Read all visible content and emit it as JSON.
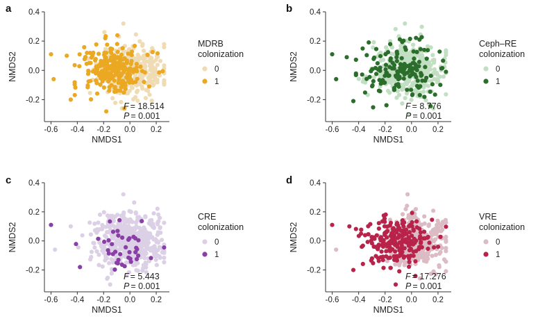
{
  "chart_data": [
    {
      "panel": "a",
      "type": "scatter",
      "xlabel": "NMDS1",
      "ylabel": "NMDS2",
      "xlim": [
        -0.65,
        0.3
      ],
      "ylim": [
        -0.35,
        0.4
      ],
      "xticks": [
        -0.6,
        -0.4,
        -0.2,
        0.0,
        0.2
      ],
      "yticks": [
        -0.2,
        0.0,
        0.2,
        0.4
      ],
      "legend": {
        "title_lines": [
          "MDRB",
          "colonization"
        ],
        "placement": "right",
        "entries": [
          {
            "label": "0",
            "color": "#efdcb4"
          },
          {
            "label": "1",
            "color": "#eaa823"
          }
        ]
      },
      "annotation": {
        "F_label": "F",
        "F_value": "= 18.514",
        "P_label": "P",
        "P_value": "= 0.001"
      },
      "series": [
        {
          "label": "0",
          "color": "#efdcb4",
          "center": [
            0.02,
            0.0
          ],
          "spread": [
            0.12,
            0.09
          ],
          "count": 330,
          "seed": 11
        },
        {
          "label": "1",
          "color": "#eaa823",
          "center": [
            -0.12,
            0.0
          ],
          "spread": [
            0.12,
            0.09
          ],
          "count": 230,
          "seed": 12
        }
      ],
      "outliers": [
        {
          "x": -0.6,
          "y": 0.11,
          "color": "#eaa823"
        },
        {
          "x": -0.58,
          "y": -0.06,
          "color": "#eaa823"
        },
        {
          "x": -0.45,
          "y": -0.2,
          "color": "#eaa823"
        },
        {
          "x": -0.48,
          "y": 0.1,
          "color": "#eaa823"
        },
        {
          "x": -0.18,
          "y": -0.28,
          "color": "#eaa823"
        },
        {
          "x": -0.05,
          "y": 0.32,
          "color": "#efdcb4"
        }
      ]
    },
    {
      "panel": "b",
      "type": "scatter",
      "xlabel": "NMDS1",
      "ylabel": "NMDS2",
      "xlim": [
        -0.65,
        0.3
      ],
      "ylim": [
        -0.35,
        0.4
      ],
      "xticks": [
        -0.6,
        -0.4,
        -0.2,
        0.0,
        0.2
      ],
      "yticks": [
        -0.2,
        0.0,
        0.2,
        0.4
      ],
      "legend": {
        "title_lines": [
          "Ceph–RE",
          "colonization"
        ],
        "placement": "right",
        "entries": [
          {
            "label": "0",
            "color": "#c3dfc3"
          },
          {
            "label": "1",
            "color": "#2b6e2b"
          }
        ]
      },
      "annotation": {
        "F_label": "F",
        "F_value": "= 8.776",
        "P_label": "P",
        "P_value": "= 0.001"
      },
      "series": [
        {
          "label": "0",
          "color": "#c3dfc3",
          "center": [
            -0.02,
            0.0
          ],
          "spread": [
            0.13,
            0.09
          ],
          "count": 420,
          "seed": 21
        },
        {
          "label": "1",
          "color": "#2b6e2b",
          "center": [
            -0.08,
            0.0
          ],
          "spread": [
            0.14,
            0.09
          ],
          "count": 150,
          "seed": 22
        }
      ],
      "outliers": [
        {
          "x": -0.6,
          "y": 0.11,
          "color": "#2b6e2b"
        },
        {
          "x": -0.57,
          "y": -0.06,
          "color": "#2b6e2b"
        },
        {
          "x": -0.44,
          "y": -0.21,
          "color": "#2b6e2b"
        },
        {
          "x": -0.49,
          "y": 0.09,
          "color": "#2b6e2b"
        },
        {
          "x": -0.02,
          "y": -0.3,
          "color": "#c3dfc3"
        },
        {
          "x": -0.05,
          "y": 0.32,
          "color": "#c3dfc3"
        }
      ]
    },
    {
      "panel": "c",
      "type": "scatter",
      "xlabel": "NMDS1",
      "ylabel": "NMDS2",
      "xlim": [
        -0.65,
        0.3
      ],
      "ylim": [
        -0.35,
        0.4
      ],
      "xticks": [
        -0.6,
        -0.4,
        -0.2,
        0.0,
        0.2
      ],
      "yticks": [
        -0.2,
        0.0,
        0.2,
        0.4
      ],
      "legend": {
        "title_lines": [
          "CRE",
          "colonization"
        ],
        "placement": "right",
        "entries": [
          {
            "label": "0",
            "color": "#dcd0e6"
          },
          {
            "label": "1",
            "color": "#8a3fa6"
          }
        ]
      },
      "annotation": {
        "F_label": "F",
        "F_value": "= 5.443",
        "P_label": "P",
        "P_value": "= 0.001"
      },
      "series": [
        {
          "label": "0",
          "color": "#dcd0e6",
          "center": [
            0.0,
            0.0
          ],
          "spread": [
            0.13,
            0.09
          ],
          "count": 520,
          "seed": 31
        },
        {
          "label": "1",
          "color": "#8a3fa6",
          "center": [
            -0.05,
            -0.02
          ],
          "spread": [
            0.13,
            0.08
          ],
          "count": 40,
          "seed": 32
        }
      ],
      "outliers": [
        {
          "x": -0.6,
          "y": 0.11,
          "color": "#8a3fa6"
        },
        {
          "x": -0.57,
          "y": -0.06,
          "color": "#dcd0e6"
        },
        {
          "x": -0.38,
          "y": -0.18,
          "color": "#8a3fa6"
        },
        {
          "x": -0.45,
          "y": 0.1,
          "color": "#dcd0e6"
        },
        {
          "x": -0.15,
          "y": -0.3,
          "color": "#dcd0e6"
        },
        {
          "x": -0.05,
          "y": 0.32,
          "color": "#dcd0e6"
        }
      ]
    },
    {
      "panel": "d",
      "type": "scatter",
      "xlabel": "NMDS1",
      "ylabel": "NMDS2",
      "xlim": [
        -0.65,
        0.3
      ],
      "ylim": [
        -0.35,
        0.4
      ],
      "xticks": [
        -0.6,
        -0.4,
        -0.2,
        0.0,
        0.2
      ],
      "yticks": [
        -0.2,
        0.0,
        0.2,
        0.4
      ],
      "legend": {
        "title_lines": [
          "VRE",
          "colonization"
        ],
        "placement": "right",
        "entries": [
          {
            "label": "0",
            "color": "#dcbcc4"
          },
          {
            "label": "1",
            "color": "#b8234a"
          }
        ]
      },
      "annotation": {
        "F_label": "F",
        "F_value": "= 17.276",
        "P_label": "P",
        "P_value": "= 0.001"
      },
      "series": [
        {
          "label": "0",
          "color": "#dcbcc4",
          "center": [
            0.03,
            0.0
          ],
          "spread": [
            0.12,
            0.09
          ],
          "count": 360,
          "seed": 41
        },
        {
          "label": "1",
          "color": "#b8234a",
          "center": [
            -0.12,
            0.0
          ],
          "spread": [
            0.13,
            0.09
          ],
          "count": 210,
          "seed": 42
        }
      ],
      "outliers": [
        {
          "x": -0.6,
          "y": 0.11,
          "color": "#b8234a"
        },
        {
          "x": -0.57,
          "y": -0.06,
          "color": "#dcbcc4"
        },
        {
          "x": -0.44,
          "y": -0.2,
          "color": "#b8234a"
        },
        {
          "x": -0.47,
          "y": 0.1,
          "color": "#b8234a"
        },
        {
          "x": -0.12,
          "y": -0.3,
          "color": "#b8234a"
        },
        {
          "x": -0.03,
          "y": 0.32,
          "color": "#dcbcc4"
        }
      ]
    }
  ]
}
